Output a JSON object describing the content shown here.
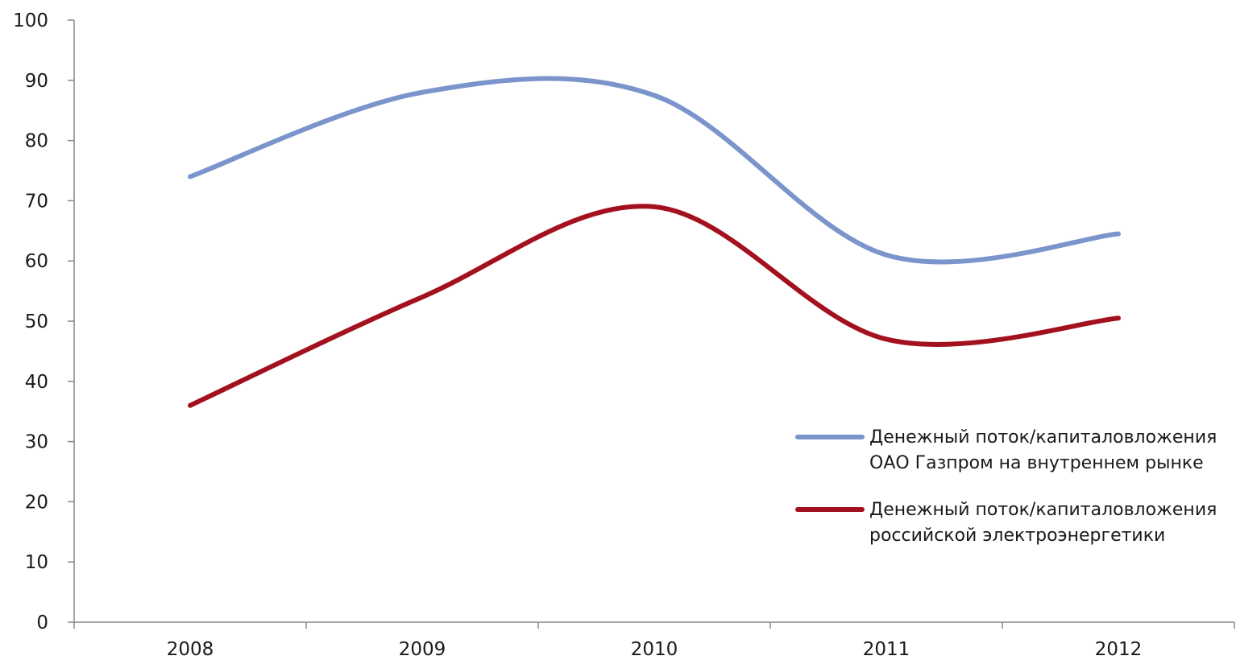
{
  "chart_data": {
    "type": "line",
    "title": "",
    "xlabel": "",
    "ylabel": "",
    "categories": [
      "2008",
      "2009",
      "2010",
      "2011",
      "2012"
    ],
    "ylim": [
      0,
      100
    ],
    "yticks": [
      0,
      10,
      20,
      30,
      40,
      50,
      60,
      70,
      80,
      90,
      100
    ],
    "smooth": true,
    "grid": false,
    "legend_position": "right",
    "series": [
      {
        "name_lines": [
          "Денежный поток/капиталовложения",
          "ОАО Газпром на  внутреннем рынке"
        ],
        "color": "#7b95cc",
        "values": [
          74,
          88,
          87.5,
          61,
          64.5
        ]
      },
      {
        "name_lines": [
          "Денежный поток/капиталовложения",
          "российской электроэнергетики"
        ],
        "color": "#a3111e",
        "values": [
          36,
          54,
          69,
          47,
          50.5
        ]
      }
    ]
  }
}
